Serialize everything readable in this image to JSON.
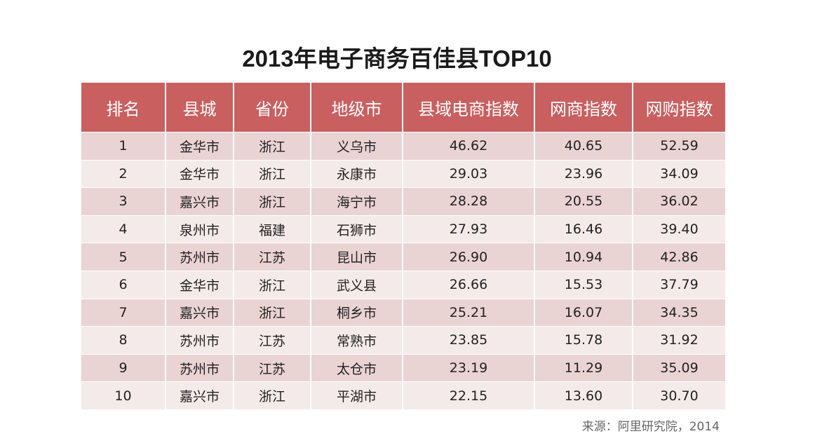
{
  "title": "2013年电子商务百佳县TOP10",
  "table": {
    "headers": [
      "排名",
      "县城",
      "省份",
      "地级市",
      "县域电商指数",
      "网商指数",
      "网购指数"
    ],
    "rows": [
      [
        "1",
        "金华市",
        "浙江",
        "义乌市",
        "46.62",
        "40.65",
        "52.59"
      ],
      [
        "2",
        "金华市",
        "浙江",
        "永康市",
        "29.03",
        "23.96",
        "34.09"
      ],
      [
        "3",
        "嘉兴市",
        "浙江",
        "海宁市",
        "28.28",
        "20.55",
        "36.02"
      ],
      [
        "4",
        "泉州市",
        "福建",
        "石狮市",
        "27.93",
        "16.46",
        "39.40"
      ],
      [
        "5",
        "苏州市",
        "江苏",
        "昆山市",
        "26.90",
        "10.94",
        "42.86"
      ],
      [
        "6",
        "金华市",
        "浙江",
        "武义县",
        "26.66",
        "15.53",
        "37.79"
      ],
      [
        "7",
        "嘉兴市",
        "浙江",
        "桐乡市",
        "25.21",
        "16.07",
        "34.35"
      ],
      [
        "8",
        "苏州市",
        "江苏",
        "常熟市",
        "23.85",
        "15.78",
        "31.92"
      ],
      [
        "9",
        "苏州市",
        "江苏",
        "太仓市",
        "23.19",
        "11.29",
        "35.09"
      ],
      [
        "10",
        "嘉兴市",
        "浙江",
        "平湖市",
        "22.15",
        "13.60",
        "30.70"
      ]
    ]
  },
  "source": "来源：阿里研究院，2014",
  "colors": {
    "header_bg": "#c95f5f",
    "row_dark": "#ead3d3",
    "row_light": "#f5eaea"
  }
}
